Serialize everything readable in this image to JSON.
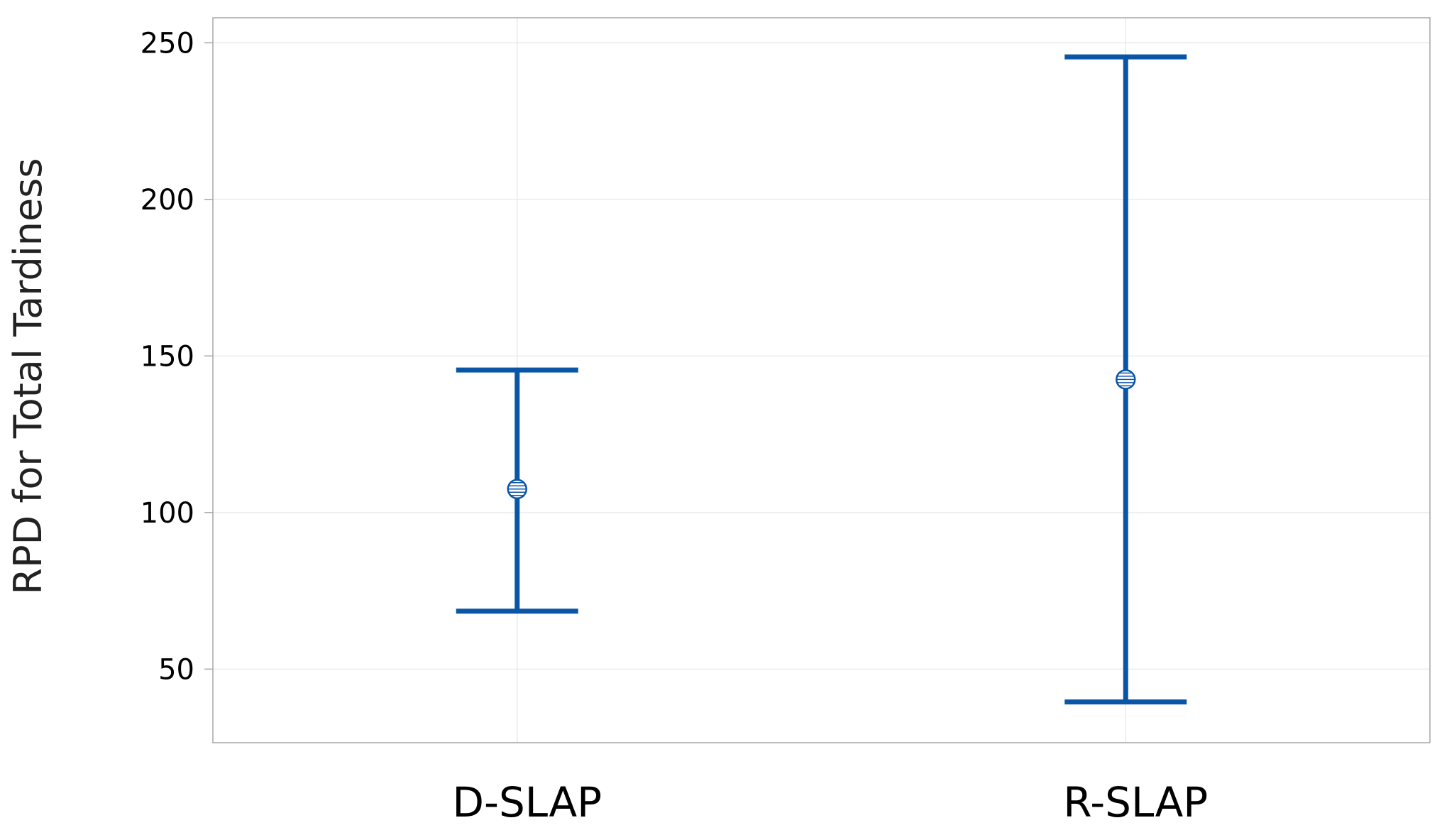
{
  "chart_data": {
    "type": "errorbar",
    "title": "",
    "xlabel": "",
    "ylabel": "RPD for Total Tardiness",
    "categories": [
      "D-SLAP",
      "R-SLAP"
    ],
    "series": [
      {
        "mean": [
          107.5,
          142.5
        ],
        "lower": [
          68.5,
          39.5
        ],
        "upper": [
          145.5,
          245.5
        ]
      }
    ],
    "ylim": [
      26.5,
      258
    ],
    "yticks": [
      50,
      100,
      150,
      200,
      250
    ],
    "grid": true,
    "color": "#0a56a6"
  }
}
